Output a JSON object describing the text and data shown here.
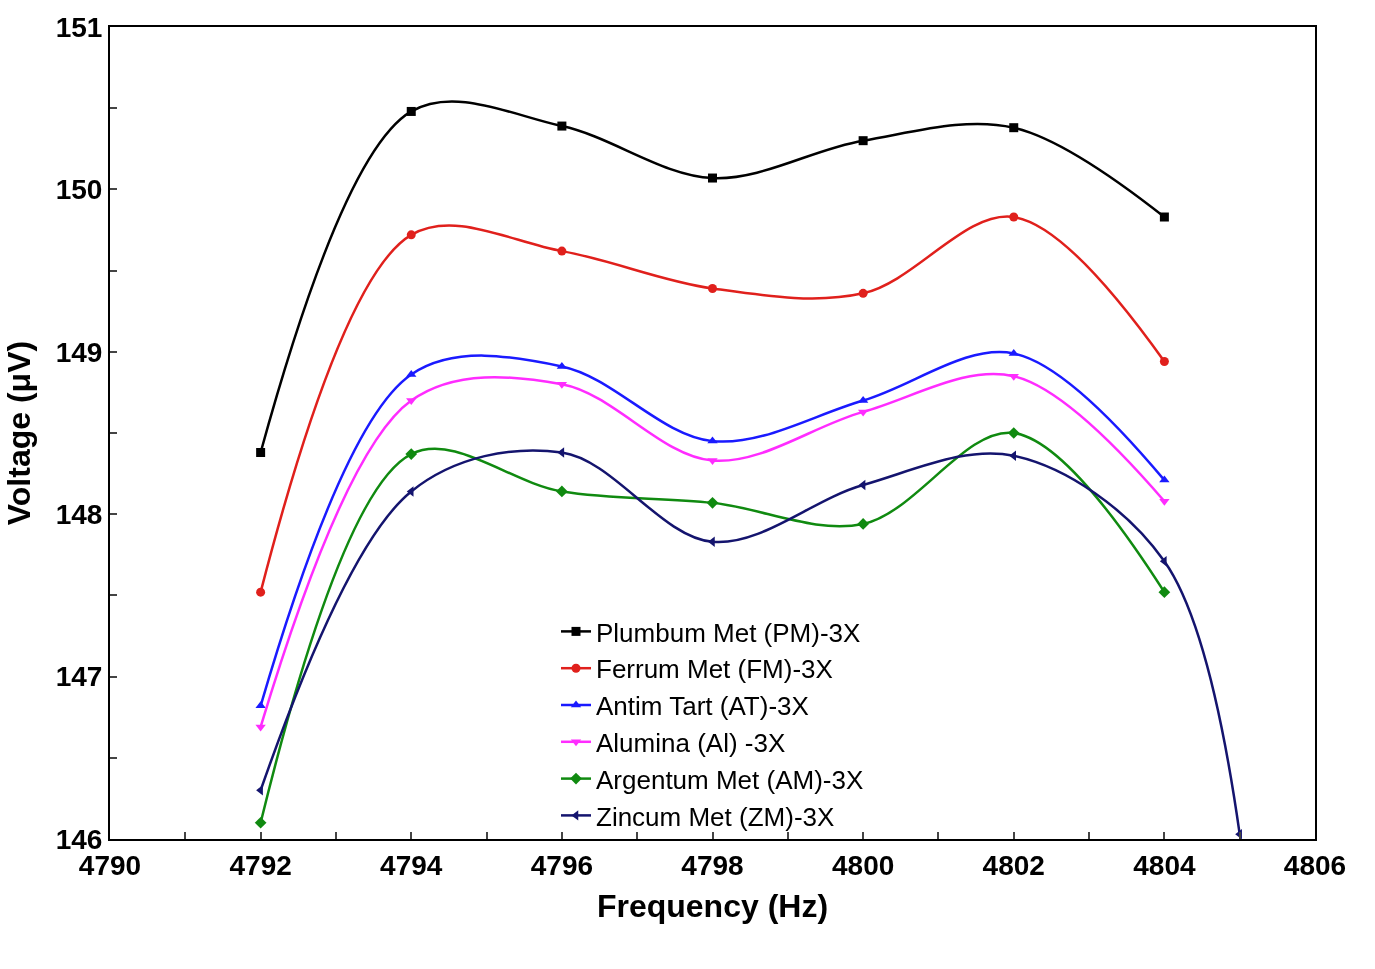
{
  "chart_data": {
    "type": "line",
    "xlabel": "Frequency (Hz)",
    "ylabel": "Voltage (μV)",
    "x": [
      4792,
      4794,
      4796,
      4798,
      4800,
      4802,
      4804
    ],
    "series": [
      {
        "name": "Plumbum Met (PM)-3X",
        "color": "#000000",
        "marker": "square",
        "values": [
          148.38,
          150.48,
          150.39,
          150.07,
          150.3,
          150.38,
          149.83
        ]
      },
      {
        "name": "Ferrum Met (FM)-3X",
        "color": "#e0201c",
        "marker": "circle",
        "values": [
          147.52,
          149.72,
          149.62,
          149.39,
          149.36,
          149.83,
          148.94
        ]
      },
      {
        "name": "Antim Tart (AT)-3X",
        "color": "#1a1aff",
        "marker": "triangle",
        "values": [
          146.82,
          148.86,
          148.91,
          148.45,
          148.7,
          148.99,
          148.21
        ]
      },
      {
        "name": "Alumina (Al) -3X",
        "color": "#ff2cff",
        "marker": "triangle-down",
        "values": [
          146.69,
          148.7,
          148.8,
          148.33,
          148.63,
          148.85,
          148.08
        ]
      },
      {
        "name": "Argentum Met (AM)-3X",
        "color": "#108a10",
        "marker": "diamond",
        "values": [
          146.1,
          148.37,
          148.14,
          148.07,
          147.94,
          148.5,
          147.52
        ]
      },
      {
        "name": "Zincum Met (ZM)-3X",
        "color": "#14146e",
        "marker": "triangle-left",
        "x": [
          4792,
          4794,
          4796,
          4798,
          4800,
          4802,
          4804,
          4805
        ],
        "values": [
          146.3,
          148.14,
          148.38,
          147.83,
          148.18,
          148.36,
          147.71,
          146.03
        ]
      }
    ],
    "xlim": [
      4790,
      4806
    ],
    "xticks": [
      4790,
      {
        "value": 4791,
        "label": null
      },
      4792,
      {
        "value": 4793,
        "label": null
      },
      4794,
      {
        "value": 4795,
        "label": null
      },
      4796,
      {
        "value": 4797,
        "label": null
      },
      4798,
      {
        "value": 4799,
        "label": null
      },
      4800,
      {
        "value": 4801,
        "label": null
      },
      4802,
      {
        "value": 4803,
        "label": null
      },
      4804,
      {
        "value": 4805,
        "label": null
      },
      4806
    ],
    "ylim": [
      146,
      151
    ],
    "yticks": [
      146,
      {
        "value": 146.5,
        "label": null
      },
      147,
      {
        "value": 147.5,
        "label": null
      },
      148,
      {
        "value": 148.5,
        "label": null
      },
      149,
      {
        "value": 149.5,
        "label": null
      },
      150,
      {
        "value": 150.5,
        "label": null
      },
      151
    ],
    "legend": "bottom",
    "line_style": "solid"
  }
}
